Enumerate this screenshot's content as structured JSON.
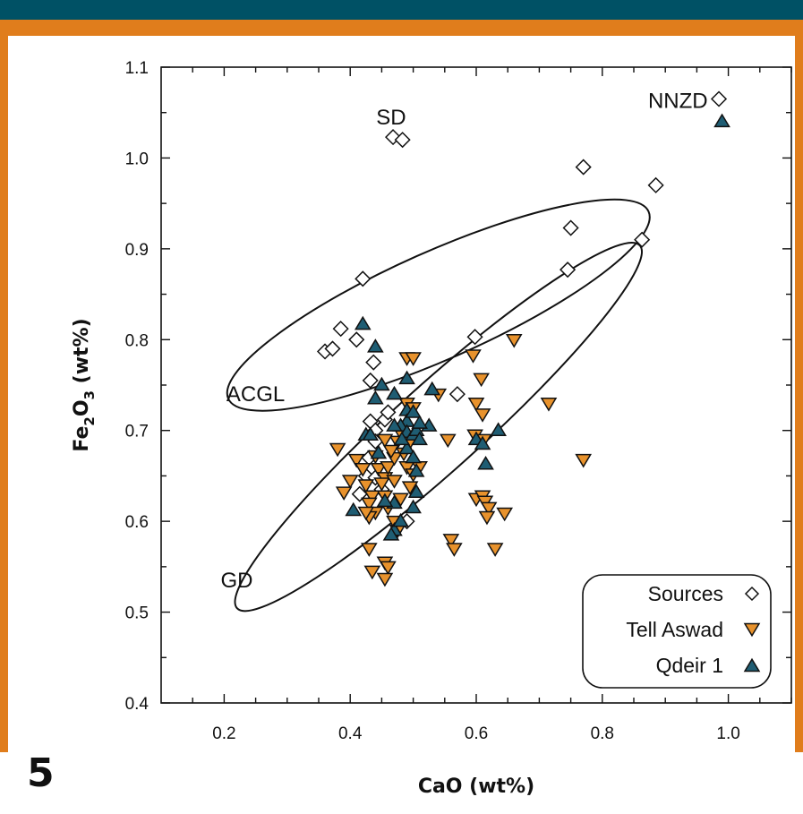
{
  "figure_number": "5",
  "colors": {
    "header": "#005165",
    "frame": "#e07d1c",
    "tell_aswad": "#e8922c",
    "qdeir": "#1f5d73",
    "sources": "#ffffff"
  },
  "chart_data": {
    "type": "scatter",
    "xlabel": "CaO (wt%)",
    "ylabel": "Fe2O3 (wt%)",
    "ylabel_parts": {
      "a": "Fe",
      "sub1": "2",
      "b": "O",
      "sub2": "3",
      "c": " (wt%)"
    },
    "xlim": [
      0.1,
      1.1
    ],
    "ylim": [
      0.4,
      1.1
    ],
    "xticks": [
      "0.2",
      "0.4",
      "0.6",
      "0.8",
      "1.0"
    ],
    "yticks": [
      "0.4",
      "0.5",
      "0.6",
      "0.7",
      "0.8",
      "0.9",
      "1.0",
      "1.1"
    ],
    "annotations": [
      {
        "text": "SD",
        "x": 0.465,
        "y": 1.045
      },
      {
        "text": "NNZD",
        "x": 0.92,
        "y": 1.063
      },
      {
        "text": "ACGL",
        "x": 0.25,
        "y": 0.74
      },
      {
        "text": "GD",
        "x": 0.22,
        "y": 0.535
      }
    ],
    "ellipses": [
      {
        "label": "ACGL",
        "cx": 0.54,
        "cy": 0.838,
        "rx": 0.365,
        "ry": 0.085,
        "angle": 24
      },
      {
        "label": "GD",
        "cx": 0.54,
        "cy": 0.704,
        "rx": 0.43,
        "ry": 0.068,
        "angle": 42
      }
    ],
    "legend": {
      "position": "bottom-right",
      "entries": [
        "Sources",
        "Tell Aswad",
        "Qdeir 1"
      ]
    },
    "series": [
      {
        "name": "Sources",
        "marker": "diamond",
        "points": [
          [
            0.468,
            1.023
          ],
          [
            0.483,
            1.02
          ],
          [
            0.985,
            1.065
          ],
          [
            0.77,
            0.99
          ],
          [
            0.885,
            0.97
          ],
          [
            0.75,
            0.923
          ],
          [
            0.863,
            0.91
          ],
          [
            0.745,
            0.877
          ],
          [
            0.42,
            0.867
          ],
          [
            0.385,
            0.812
          ],
          [
            0.41,
            0.8
          ],
          [
            0.598,
            0.803
          ],
          [
            0.36,
            0.787
          ],
          [
            0.372,
            0.79
          ],
          [
            0.437,
            0.775
          ],
          [
            0.432,
            0.755
          ],
          [
            0.57,
            0.74
          ],
          [
            0.432,
            0.71
          ],
          [
            0.44,
            0.7
          ],
          [
            0.43,
            0.67
          ],
          [
            0.425,
            0.65
          ],
          [
            0.44,
            0.648
          ],
          [
            0.45,
            0.635
          ],
          [
            0.415,
            0.63
          ],
          [
            0.49,
            0.6
          ],
          [
            0.455,
            0.712
          ],
          [
            0.44,
            0.688
          ],
          [
            0.46,
            0.72
          ]
        ]
      },
      {
        "name": "Tell Aswad",
        "marker": "triangle-down",
        "points": [
          [
            0.38,
            0.68
          ],
          [
            0.41,
            0.668
          ],
          [
            0.42,
            0.658
          ],
          [
            0.4,
            0.645
          ],
          [
            0.39,
            0.632
          ],
          [
            0.425,
            0.64
          ],
          [
            0.435,
            0.628
          ],
          [
            0.43,
            0.62
          ],
          [
            0.44,
            0.61
          ],
          [
            0.43,
            0.605
          ],
          [
            0.445,
            0.658
          ],
          [
            0.455,
            0.648
          ],
          [
            0.46,
            0.66
          ],
          [
            0.47,
            0.67
          ],
          [
            0.475,
            0.688
          ],
          [
            0.48,
            0.698
          ],
          [
            0.465,
            0.678
          ],
          [
            0.45,
            0.642
          ],
          [
            0.455,
            0.628
          ],
          [
            0.46,
            0.615
          ],
          [
            0.47,
            0.6
          ],
          [
            0.475,
            0.59
          ],
          [
            0.43,
            0.57
          ],
          [
            0.455,
            0.555
          ],
          [
            0.46,
            0.55
          ],
          [
            0.435,
            0.545
          ],
          [
            0.455,
            0.537
          ],
          [
            0.49,
            0.78
          ],
          [
            0.5,
            0.78
          ],
          [
            0.49,
            0.73
          ],
          [
            0.5,
            0.725
          ],
          [
            0.495,
            0.688
          ],
          [
            0.485,
            0.675
          ],
          [
            0.49,
            0.66
          ],
          [
            0.5,
            0.652
          ],
          [
            0.495,
            0.638
          ],
          [
            0.51,
            0.66
          ],
          [
            0.54,
            0.74
          ],
          [
            0.555,
            0.69
          ],
          [
            0.56,
            0.58
          ],
          [
            0.565,
            0.57
          ],
          [
            0.595,
            0.783
          ],
          [
            0.608,
            0.757
          ],
          [
            0.6,
            0.73
          ],
          [
            0.61,
            0.718
          ],
          [
            0.598,
            0.695
          ],
          [
            0.612,
            0.69
          ],
          [
            0.6,
            0.625
          ],
          [
            0.61,
            0.628
          ],
          [
            0.614,
            0.622
          ],
          [
            0.62,
            0.615
          ],
          [
            0.617,
            0.605
          ],
          [
            0.63,
            0.57
          ],
          [
            0.645,
            0.609
          ],
          [
            0.66,
            0.8
          ],
          [
            0.715,
            0.73
          ],
          [
            0.77,
            0.668
          ],
          [
            0.455,
            0.69
          ],
          [
            0.44,
            0.672
          ],
          [
            0.47,
            0.645
          ],
          [
            0.425,
            0.61
          ],
          [
            0.48,
            0.625
          ]
        ]
      },
      {
        "name": "Qdeir 1",
        "marker": "triangle-up",
        "points": [
          [
            0.99,
            1.04
          ],
          [
            0.42,
            0.817
          ],
          [
            0.44,
            0.792
          ],
          [
            0.45,
            0.75
          ],
          [
            0.44,
            0.735
          ],
          [
            0.425,
            0.695
          ],
          [
            0.432,
            0.695
          ],
          [
            0.445,
            0.675
          ],
          [
            0.47,
            0.74
          ],
          [
            0.49,
            0.757
          ],
          [
            0.49,
            0.722
          ],
          [
            0.49,
            0.71
          ],
          [
            0.5,
            0.72
          ],
          [
            0.48,
            0.705
          ],
          [
            0.47,
            0.705
          ],
          [
            0.49,
            0.698
          ],
          [
            0.5,
            0.695
          ],
          [
            0.505,
            0.7
          ],
          [
            0.51,
            0.69
          ],
          [
            0.49,
            0.68
          ],
          [
            0.5,
            0.67
          ],
          [
            0.505,
            0.655
          ],
          [
            0.47,
            0.62
          ],
          [
            0.505,
            0.632
          ],
          [
            0.5,
            0.615
          ],
          [
            0.47,
            0.59
          ],
          [
            0.48,
            0.6
          ],
          [
            0.465,
            0.585
          ],
          [
            0.405,
            0.612
          ],
          [
            0.455,
            0.622
          ],
          [
            0.525,
            0.705
          ],
          [
            0.53,
            0.745
          ],
          [
            0.6,
            0.69
          ],
          [
            0.61,
            0.685
          ],
          [
            0.615,
            0.663
          ],
          [
            0.635,
            0.7
          ],
          [
            0.51,
            0.708
          ],
          [
            0.482,
            0.69
          ]
        ]
      }
    ]
  }
}
